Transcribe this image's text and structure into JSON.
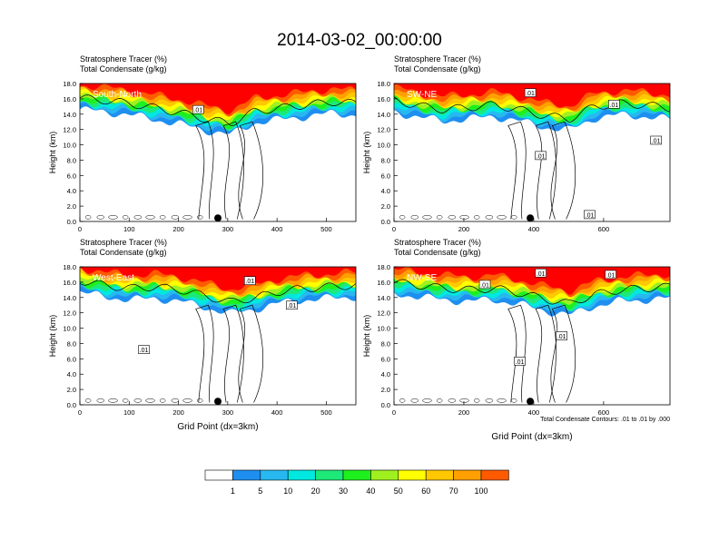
{
  "title": "2014-03-02_00:00:00",
  "contour_note": "Total Condensate Contours: .01 to .01 by .000",
  "x_axis_title": "Grid Point (dx=3km)",
  "y_axis_title": "Height (km)",
  "field_labels": {
    "tracer": "Stratosphere Tracer",
    "tracer_units": "(%)",
    "condensate": "Total Condensate",
    "condensate_units": "(g/kg)"
  },
  "colorbar": {
    "levels": [
      "1",
      "5",
      "10",
      "20",
      "30",
      "40",
      "50",
      "60",
      "70",
      "100"
    ],
    "colors": [
      "#ffffff",
      "#1e8ff0",
      "#28b8f0",
      "#00e8e0",
      "#1ee878",
      "#1ef01e",
      "#a0f020",
      "#ffff00",
      "#ffc800",
      "#ffa000",
      "#ff5a00",
      "#ff0000"
    ]
  },
  "chart_data": [
    {
      "type": "contour-cross-section",
      "panel": "South-North",
      "ylabel": "Height (km)",
      "ylim": [
        0,
        18
      ],
      "yticks": [
        "0.0",
        "2.0",
        "4.0",
        "6.0",
        "8.0",
        "10.0",
        "12.0",
        "14.0",
        "16.0",
        "18.0"
      ],
      "xlim": [
        0,
        560
      ],
      "xticks": [
        0,
        100,
        200,
        300,
        400,
        500
      ],
      "marker_x": 280,
      "contour_labels": [
        {
          "text": ".01",
          "x": 240,
          "y": 14.6
        }
      ],
      "tropopause_km": [
        15.5,
        15.2,
        14.8,
        14.2,
        13.6,
        12.8,
        12.2,
        13.8,
        14.2,
        14.6,
        15.0,
        14.8
      ]
    },
    {
      "type": "contour-cross-section",
      "panel": "SW-NE",
      "ylabel": "Height (km)",
      "ylim": [
        0,
        18
      ],
      "yticks": [
        "0.0",
        "2.0",
        "4.0",
        "6.0",
        "8.0",
        "10.0",
        "12.0",
        "14.0",
        "16.0",
        "18.0"
      ],
      "xlim": [
        0,
        790
      ],
      "xticks": [
        0,
        200,
        400,
        600
      ],
      "marker_x": 390,
      "contour_labels": [
        {
          "text": ".01",
          "x": 390,
          "y": 16.8
        },
        {
          "text": ".01",
          "x": 630,
          "y": 15.3
        },
        {
          "text": ".01",
          "x": 420,
          "y": 8.6
        },
        {
          "text": ".01",
          "x": 750,
          "y": 10.6
        },
        {
          "text": ".01",
          "x": 560,
          "y": 0.9
        }
      ],
      "tropopause_km": [
        15.2,
        14.5,
        14.0,
        14.3,
        14.6,
        14.0,
        13.2,
        12.8,
        14.4,
        14.8,
        14.6,
        14.2
      ]
    },
    {
      "type": "contour-cross-section",
      "panel": "West-East",
      "ylabel": "Height (km)",
      "ylim": [
        0,
        18
      ],
      "yticks": [
        "0.0",
        "2.0",
        "4.0",
        "6.0",
        "8.0",
        "10.0",
        "12.0",
        "14.0",
        "16.0",
        "18.0"
      ],
      "xlim": [
        0,
        560
      ],
      "xticks": [
        0,
        100,
        200,
        300,
        400,
        500
      ],
      "marker_x": 280,
      "contour_labels": [
        {
          "text": ".01",
          "x": 345,
          "y": 16.2
        },
        {
          "text": ".01",
          "x": 430,
          "y": 13.0
        },
        {
          "text": ".01",
          "x": 130,
          "y": 7.2
        }
      ],
      "tropopause_km": [
        15.6,
        15.0,
        14.6,
        14.8,
        14.4,
        13.6,
        12.8,
        13.4,
        14.2,
        14.6,
        14.8,
        15.0
      ]
    },
    {
      "type": "contour-cross-section",
      "panel": "NW-SE",
      "ylabel": "Height (km)",
      "ylim": [
        0,
        18
      ],
      "yticks": [
        "0.0",
        "2.0",
        "4.0",
        "6.0",
        "8.0",
        "10.0",
        "12.0",
        "14.0",
        "16.0",
        "18.0"
      ],
      "xlim": [
        0,
        790
      ],
      "xticks": [
        0,
        200,
        400,
        600
      ],
      "marker_x": 390,
      "contour_labels": [
        {
          "text": ".01",
          "x": 420,
          "y": 17.2
        },
        {
          "text": ".01",
          "x": 620,
          "y": 17.0
        },
        {
          "text": ".01",
          "x": 260,
          "y": 15.7
        },
        {
          "text": ".01",
          "x": 480,
          "y": 9.0
        },
        {
          "text": ".01",
          "x": 360,
          "y": 5.7
        }
      ],
      "tropopause_km": [
        15.4,
        15.0,
        14.6,
        14.4,
        14.6,
        14.0,
        13.2,
        12.6,
        13.8,
        14.4,
        14.6,
        14.8
      ]
    }
  ]
}
